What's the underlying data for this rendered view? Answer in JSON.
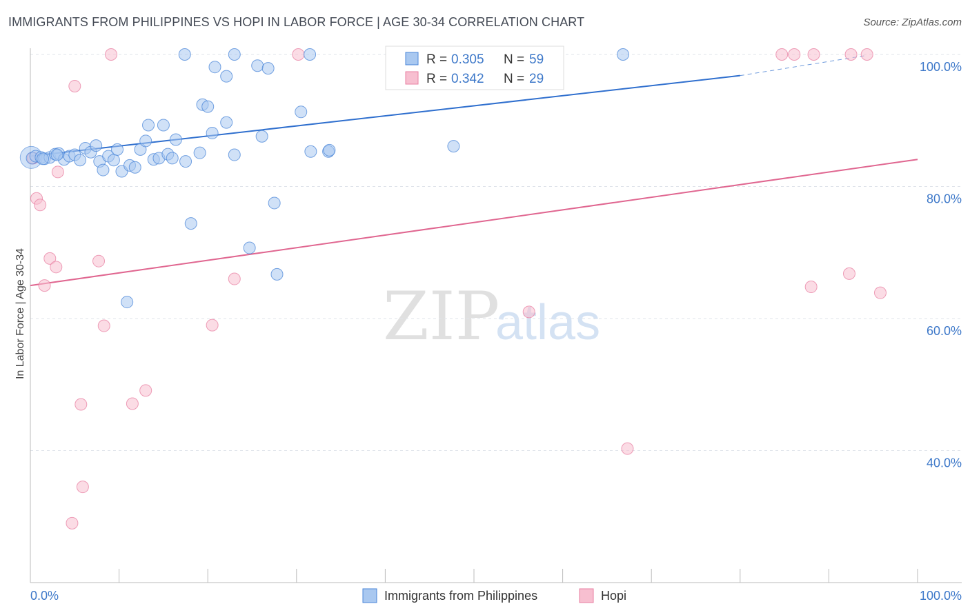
{
  "title": "IMMIGRANTS FROM PHILIPPINES VS HOPI IN LABOR FORCE | AGE 30-34 CORRELATION CHART",
  "source": "Source: ZipAtlas.com",
  "watermark": {
    "zip": "ZIP",
    "atlas": "atlas"
  },
  "colors": {
    "blue": "#4a86d8",
    "blue_fill": "#a9c8f0",
    "blue_line": "#2f6fce",
    "pink": "#e87fa2",
    "pink_fill": "#f7bfd0",
    "pink_line": "#e06690",
    "tick": "#3d78c9",
    "grid": "#dfe3ea"
  },
  "chart_data": {
    "type": "scatter",
    "title": "IMMIGRANTS FROM PHILIPPINES VS HOPI IN LABOR FORCE | AGE 30-34 CORRELATION CHART",
    "xlabel": "",
    "ylabel": "In Labor Force | Age 30-34",
    "xlim": [
      0,
      100
    ],
    "ylim": [
      20,
      100
    ],
    "x_tick_labels": [
      "0.0%",
      "100.0%"
    ],
    "y_ticks": [
      40,
      60,
      80,
      100
    ],
    "y_tick_labels": [
      "40.0%",
      "60.0%",
      "80.0%",
      "100.0%"
    ],
    "grid": true,
    "legend_stats": [
      {
        "r_label": "R =",
        "r_value": "0.305",
        "n_label": "N =",
        "n_value": "59"
      },
      {
        "r_label": "R =",
        "r_value": "0.342",
        "n_label": "N =",
        "n_value": "29"
      }
    ],
    "series": [
      {
        "name": "Immigrants from Philippines",
        "color": "#4a86d8",
        "trend": {
          "x0": 0,
          "y0": 84.6,
          "x1": 80,
          "y1": 96.8,
          "dashed_to_x": 94,
          "dashed_to_y": 99.8
        },
        "points": [
          [
            0.2,
            84.3
          ],
          [
            0.6,
            84.6
          ],
          [
            1.2,
            84.4
          ],
          [
            1.6,
            84.2
          ],
          [
            2.2,
            84.4
          ],
          [
            2.8,
            84.9
          ],
          [
            3.2,
            85.0
          ],
          [
            3.8,
            84.1
          ],
          [
            4.4,
            84.6
          ],
          [
            5.0,
            84.8
          ],
          [
            5.6,
            84.0
          ],
          [
            6.2,
            85.8
          ],
          [
            6.8,
            85.2
          ],
          [
            7.4,
            86.2
          ],
          [
            7.8,
            83.8
          ],
          [
            8.2,
            82.5
          ],
          [
            8.8,
            84.6
          ],
          [
            9.4,
            84.0
          ],
          [
            9.8,
            85.6
          ],
          [
            10.3,
            82.3
          ],
          [
            11.2,
            83.2
          ],
          [
            11.8,
            82.9
          ],
          [
            12.4,
            85.6
          ],
          [
            13.0,
            86.9
          ],
          [
            13.3,
            89.3
          ],
          [
            13.9,
            84.1
          ],
          [
            14.5,
            84.3
          ],
          [
            15.0,
            89.3
          ],
          [
            15.5,
            84.9
          ],
          [
            16.0,
            84.3
          ],
          [
            16.4,
            87.1
          ],
          [
            17.5,
            83.8
          ],
          [
            19.1,
            85.1
          ],
          [
            19.4,
            92.4
          ],
          [
            20.0,
            92.1
          ],
          [
            20.5,
            88.1
          ],
          [
            22.1,
            89.7
          ],
          [
            23.0,
            84.8
          ],
          [
            26.1,
            87.6
          ],
          [
            30.5,
            91.3
          ],
          [
            31.6,
            85.3
          ],
          [
            33.6,
            85.3
          ],
          [
            33.7,
            85.5
          ],
          [
            17.4,
            100.0
          ],
          [
            23.0,
            100.0
          ],
          [
            31.5,
            100.0
          ],
          [
            20.8,
            98.1
          ],
          [
            22.1,
            96.7
          ],
          [
            25.6,
            98.3
          ],
          [
            26.8,
            97.9
          ],
          [
            66.8,
            100.0
          ],
          [
            47.7,
            86.1
          ],
          [
            27.5,
            77.5
          ],
          [
            18.1,
            74.4
          ],
          [
            24.7,
            70.7
          ],
          [
            27.8,
            66.7
          ],
          [
            10.9,
            62.5
          ],
          [
            3.0,
            84.8
          ],
          [
            1.4,
            84.2
          ]
        ]
      },
      {
        "name": "Hopi",
        "color": "#e87fa2",
        "trend": {
          "x0": 0,
          "y0": 65.0,
          "x1": 100,
          "y1": 84.1
        },
        "points": [
          [
            0.3,
            84.3
          ],
          [
            0.7,
            78.2
          ],
          [
            1.1,
            77.2
          ],
          [
            1.6,
            65.0
          ],
          [
            2.2,
            69.1
          ],
          [
            2.9,
            67.8
          ],
          [
            3.1,
            82.2
          ],
          [
            4.7,
            29.0
          ],
          [
            5.0,
            95.2
          ],
          [
            5.7,
            47.0
          ],
          [
            5.9,
            34.5
          ],
          [
            7.7,
            68.7
          ],
          [
            8.3,
            58.9
          ],
          [
            9.1,
            100.0
          ],
          [
            11.5,
            47.1
          ],
          [
            13.0,
            49.1
          ],
          [
            20.5,
            59.0
          ],
          [
            23.0,
            66.0
          ],
          [
            30.2,
            100.0
          ],
          [
            56.2,
            61.0
          ],
          [
            67.3,
            40.3
          ],
          [
            84.7,
            100.0
          ],
          [
            86.1,
            100.0
          ],
          [
            88.3,
            100.0
          ],
          [
            92.5,
            100.0
          ],
          [
            94.3,
            100.0
          ],
          [
            88.0,
            64.8
          ],
          [
            92.3,
            66.8
          ],
          [
            95.8,
            63.9
          ]
        ]
      }
    ]
  },
  "legend_bottom": [
    {
      "label": "Immigrants from Philippines"
    },
    {
      "label": "Hopi"
    }
  ]
}
